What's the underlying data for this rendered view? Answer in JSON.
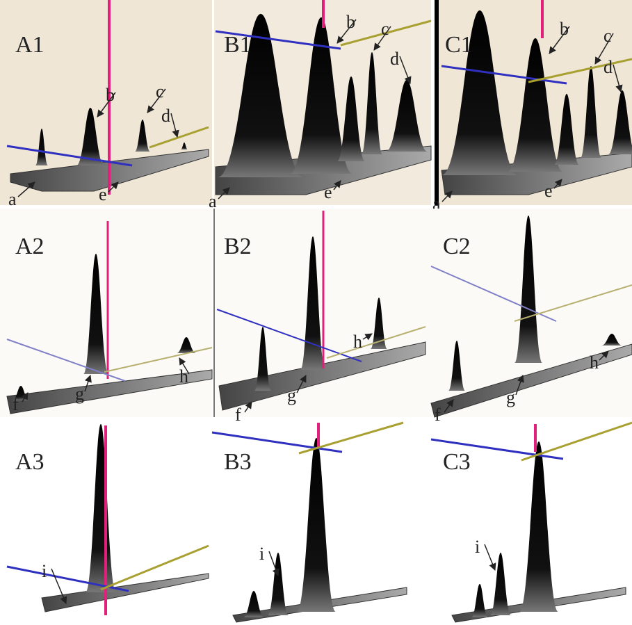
{
  "panels": [
    {
      "label": "A1",
      "annotations": [
        "a",
        "b",
        "c",
        "d",
        "e"
      ]
    },
    {
      "label": "B1",
      "annotations": [
        "a",
        "b",
        "c",
        "d",
        "e"
      ]
    },
    {
      "label": "C1",
      "annotations": [
        "a",
        "b",
        "c",
        "d",
        "e"
      ]
    },
    {
      "label": "A2",
      "annotations": [
        "f",
        "g",
        "h"
      ]
    },
    {
      "label": "B2",
      "annotations": [
        "f",
        "g",
        "h"
      ]
    },
    {
      "label": "C2",
      "annotations": [
        "f",
        "g",
        "h"
      ]
    },
    {
      "label": "A3",
      "annotations": [
        "i"
      ]
    },
    {
      "label": "B3",
      "annotations": [
        "i"
      ]
    },
    {
      "label": "C3",
      "annotations": [
        "i"
      ]
    }
  ]
}
